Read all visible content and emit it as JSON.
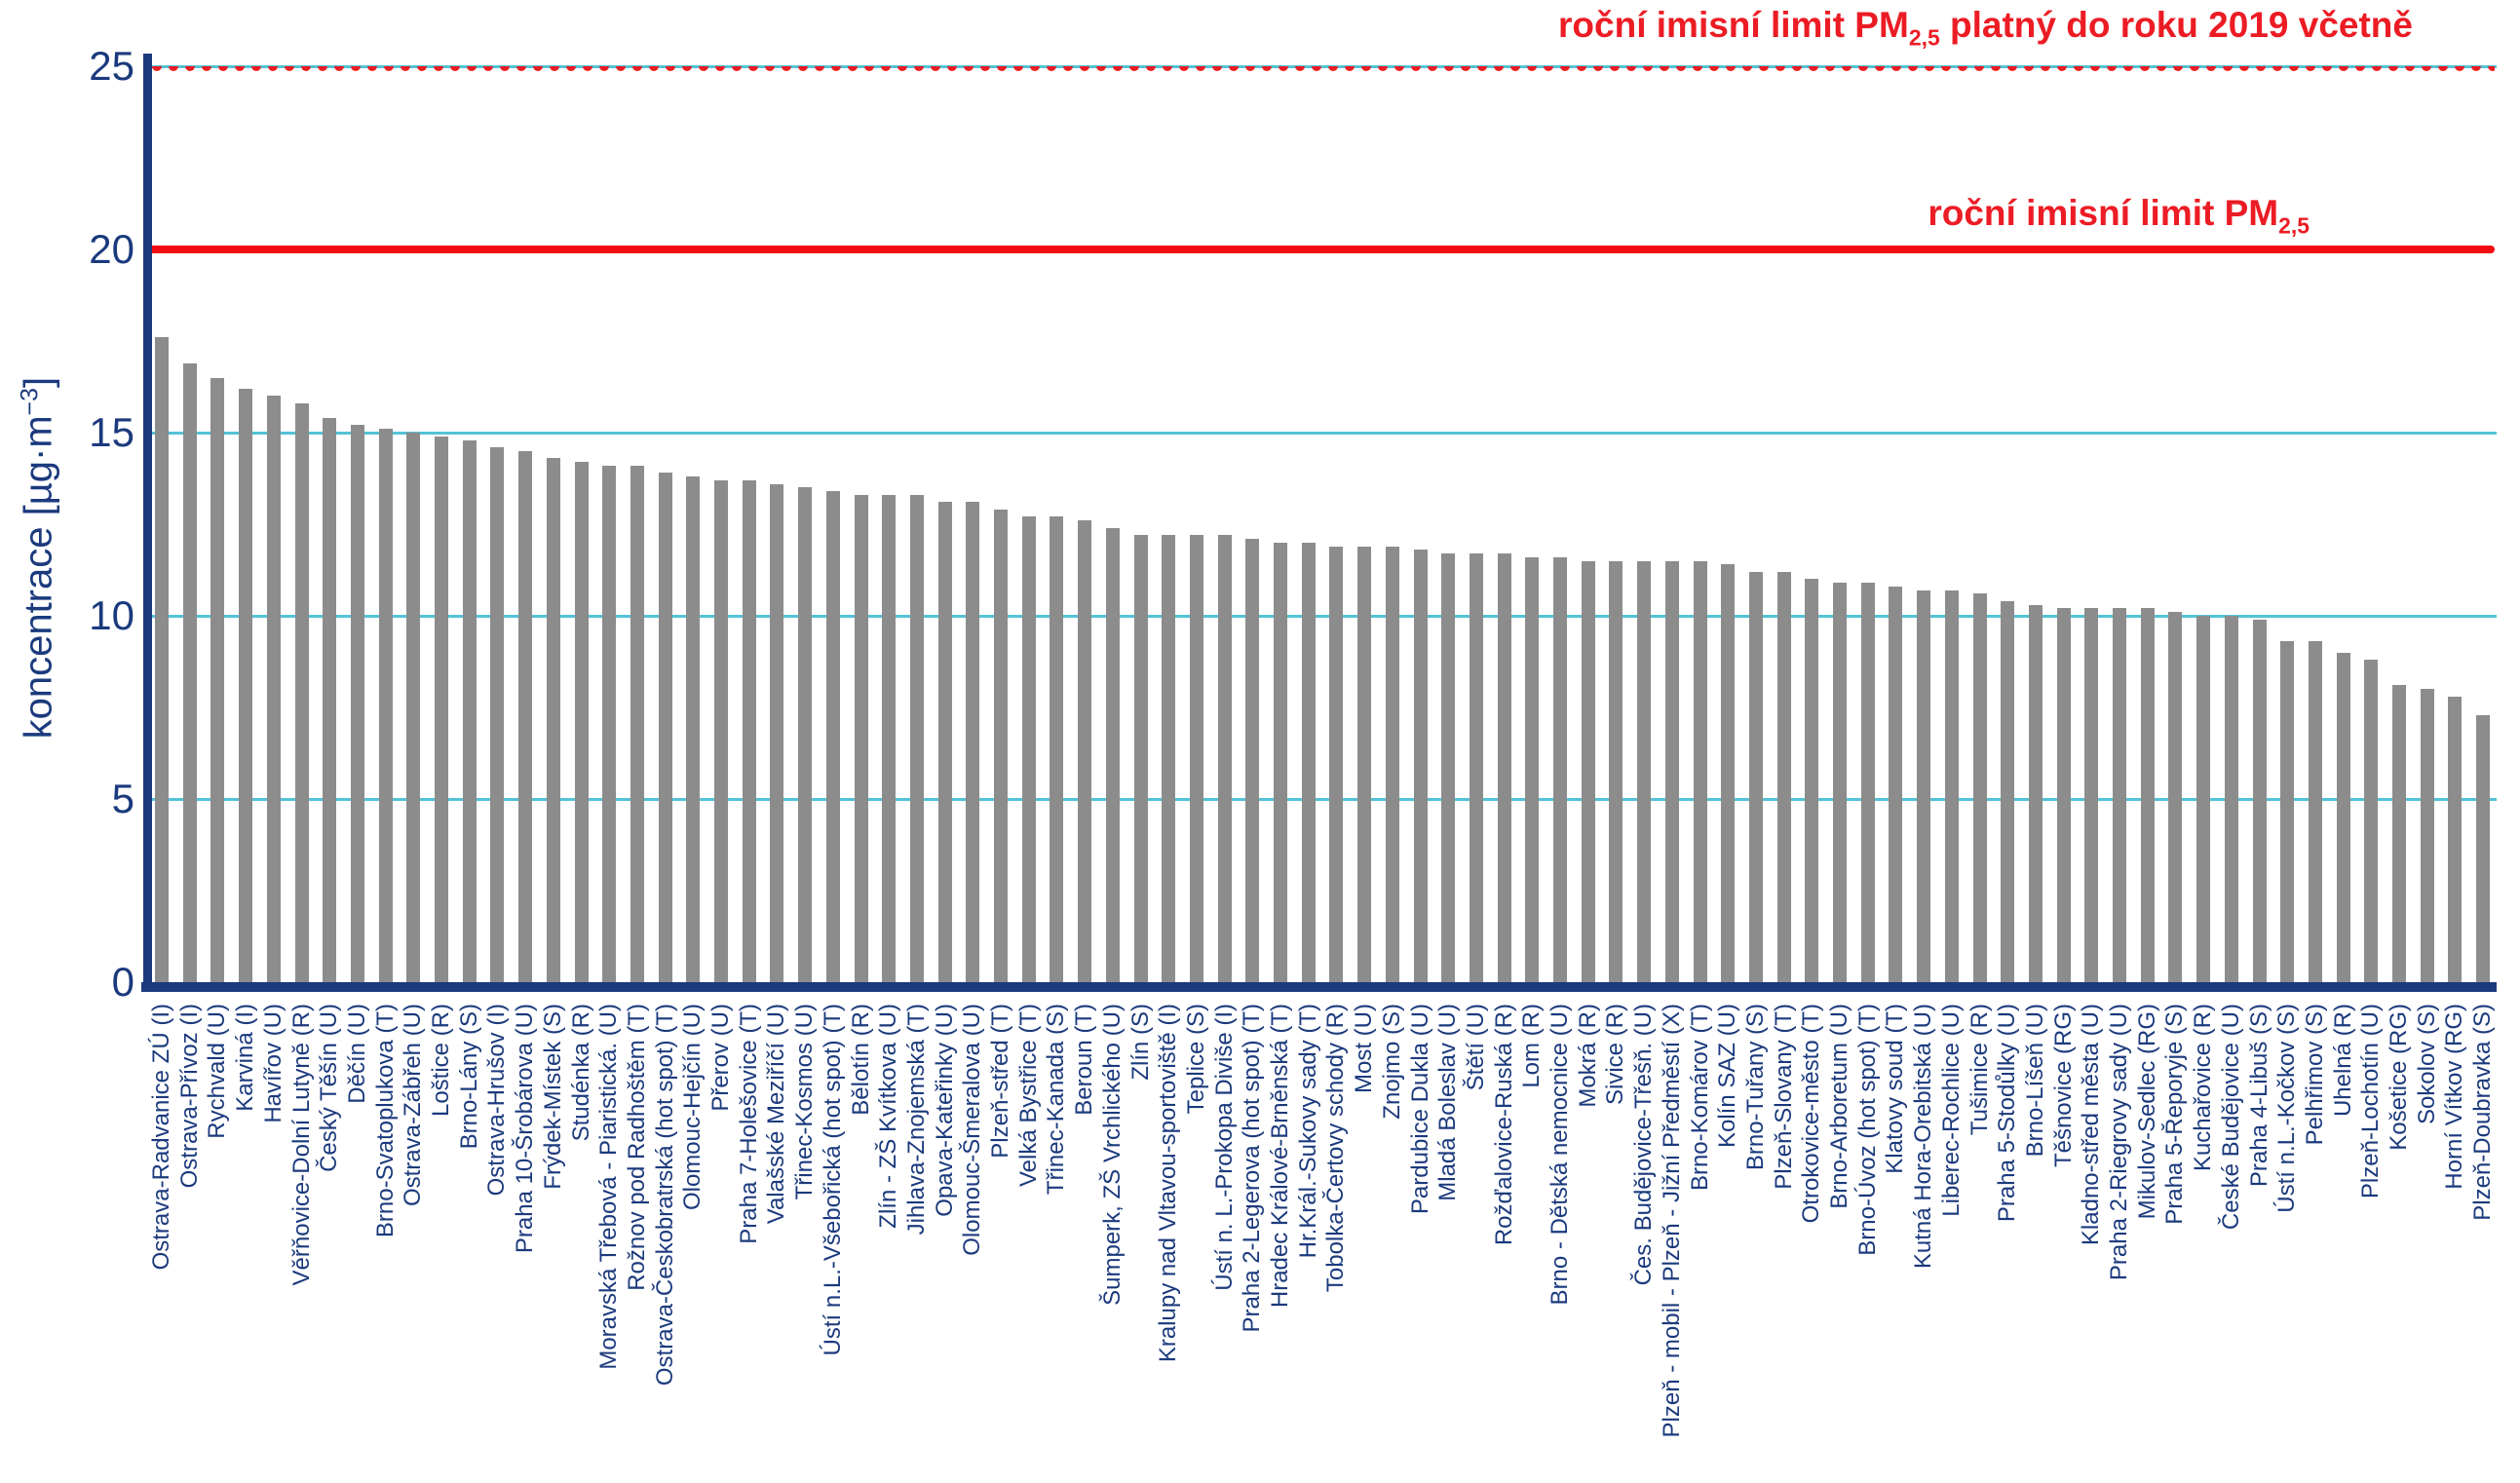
{
  "chart_data": {
    "type": "bar",
    "title": "",
    "xlabel": "",
    "ylabel": "koncentrace [µg·m−3]",
    "ylim": [
      0,
      25
    ],
    "yticks": [
      0,
      5,
      10,
      15,
      20,
      25
    ],
    "grid": "horizontal",
    "bar_color": "#8c8c8c",
    "grid_color": "#53c3d6",
    "axis_color": "#1b3a7d",
    "limit_lines": [
      {
        "value": 25,
        "style": "dotted",
        "color": "#ec1c24",
        "label_pre": "roční imisní limit PM",
        "label_sub": "2,5",
        "label_post": " platný do roku 2019 včetně"
      },
      {
        "value": 20,
        "style": "solid",
        "color": "#ec1c24",
        "label_pre": "roční imisní limit PM",
        "label_sub": "2,5",
        "label_post": ""
      }
    ],
    "categories": [
      "Ostrava-Radvanice ZÚ (I)",
      "Ostrava-Přívoz (I)",
      "Rychvald (U)",
      "Karviná (I)",
      "Havířov (U)",
      "Věřňovice-Dolní Lutyně (R)",
      "Český Těšín (U)",
      "Děčín (U)",
      "Brno-Svatoplukova (T)",
      "Ostrava-Zábřeh (U)",
      "Loštice (R)",
      "Brno-Lány (S)",
      "Ostrava-Hrušov (I)",
      "Praha 10-Šrobárova (U)",
      "Frýdek-Místek (S)",
      "Studénka (R)",
      "Moravská Třebová - Piaristická. (U)",
      "Rožnov pod Radhoštěm (T)",
      "Ostrava-Českobratrská (hot spot) (T)",
      "Olomouc-Hejčín (U)",
      "Přerov (U)",
      "Praha 7-Holešovice (T)",
      "Valašské Meziříčí (U)",
      "Třinec-Kosmos (U)",
      "Ústí n.L.-Všebořická (hot spot) (T)",
      "Bělotín (R)",
      "Zlín - ZŠ Kvítkova (U)",
      "Jihlava-Znojemská (T)",
      "Opava-Kateřinky (U)",
      "Olomouc-Šmeralova (U)",
      "Plzeň-střed (T)",
      "Velká Bystřice (T)",
      "Třinec-Kanada (S)",
      "Beroun (T)",
      "Šumperk, ZŠ Vrchlického (U)",
      "Zlín (S)",
      "Kralupy nad Vltavou-sportoviště (I)",
      "Teplice (S)",
      "Ústí n. L.-Prokopa Diviše (I)",
      "Praha 2-Legerova (hot spot) (T)",
      "Hradec Králové-Brněnská (T)",
      "Hr.Král.-Sukovy sady (T)",
      "Tobolka-Čertovy schody (R)",
      "Most (U)",
      "Znojmo (S)",
      "Pardubice Dukla (U)",
      "Mladá Boleslav (U)",
      "Štětí (U)",
      "Rožďalovice-Ruská (R)",
      "Lom (R)",
      "Brno - Dětská nemocnice (U)",
      "Mokrá (R)",
      "Sivice (R)",
      "Čes. Budějovice-Třešň. (U)",
      "Plzeň - mobil - Plzeň - Jižní Předměstí (X)",
      "Brno-Komárov (T)",
      "Kolín SAZ (U)",
      "Brno-Tuřany (S)",
      "Plzeň-Slovany (T)",
      "Otrokovice-město (T)",
      "Brno-Arboretum (U)",
      "Brno-Úvoz (hot spot) (T)",
      "Klatovy soud (T)",
      "Kutná Hora-Orebitská (U)",
      "Liberec-Rochlice (U)",
      "Tušimice (R)",
      "Praha 5-Stodůlky (U)",
      "Brno-Líšeň (U)",
      "Těšnovice (RG)",
      "Kladno-střed města (U)",
      "Praha 2-Riegrovy sady (U)",
      "Mikulov-Sedlec (RG)",
      "Praha 5-Řeporyje (S)",
      "Kuchařovice (R)",
      "České Budějovice (U)",
      "Praha 4-Libuš (S)",
      "Ústí n.L.-Kočkov (S)",
      "Pelhřimov (S)",
      "Uhelná (R)",
      "Plzeň-Lochotín (U)",
      "Košetice (RG)",
      "Sokolov (S)",
      "Horní Vítkov (RG)",
      "Plzeň-Doubravka (S)"
    ],
    "values": [
      17.6,
      16.9,
      16.5,
      16.2,
      16.0,
      15.8,
      15.4,
      15.2,
      15.1,
      15.0,
      14.9,
      14.8,
      14.6,
      14.5,
      14.3,
      14.2,
      14.1,
      14.1,
      13.9,
      13.8,
      13.7,
      13.7,
      13.6,
      13.5,
      13.4,
      13.3,
      13.3,
      13.3,
      13.1,
      13.1,
      12.9,
      12.7,
      12.7,
      12.6,
      12.4,
      12.2,
      12.2,
      12.2,
      12.2,
      12.1,
      12.0,
      12.0,
      11.9,
      11.9,
      11.9,
      11.8,
      11.7,
      11.7,
      11.7,
      11.6,
      11.6,
      11.5,
      11.5,
      11.5,
      11.5,
      11.5,
      11.4,
      11.2,
      11.2,
      11.0,
      10.9,
      10.9,
      10.8,
      10.7,
      10.7,
      10.6,
      10.4,
      10.3,
      10.2,
      10.2,
      10.2,
      10.2,
      10.1,
      10.0,
      10.0,
      9.9,
      9.3,
      9.3,
      9.0,
      8.8,
      8.1,
      8.0,
      7.8,
      7.3
    ]
  },
  "y_axis": {
    "title_pre": "koncentrace [µg·m",
    "title_sup": "−3",
    "title_post": "]",
    "ticks": [
      "0",
      "5",
      "10",
      "15",
      "20",
      "25"
    ]
  }
}
